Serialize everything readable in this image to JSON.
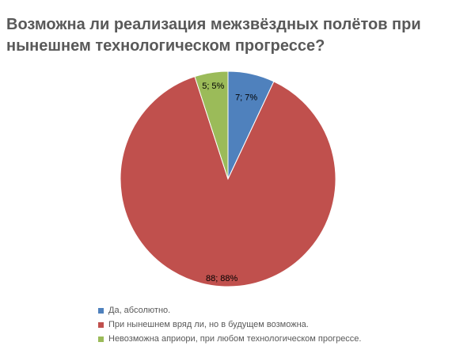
{
  "chart_data": {
    "type": "pie",
    "title": "Возможна ли реализация межзвёздных полётов при нынешнем технологическом прогрессе?",
    "categories": [
      "Да, абсолютно.",
      "При нынешнем вряд ли, но в будущем возможна.",
      "Невозможна априори, при любом технологическом прогрессе."
    ],
    "values": [
      7,
      88,
      5
    ],
    "data_labels": [
      "7; 7%",
      "88; 88%",
      "5; 5%"
    ],
    "colors": [
      "#4F81BD",
      "#C0504D",
      "#9BBB59"
    ],
    "start_angle": "12 o'clock, clockwise",
    "legend_position": "bottom"
  }
}
